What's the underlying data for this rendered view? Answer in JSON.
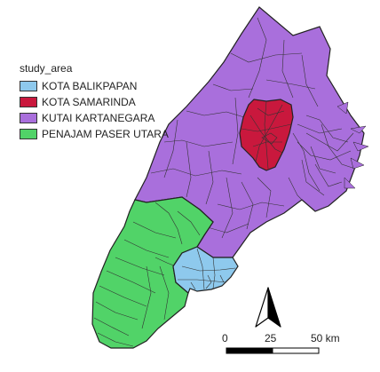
{
  "legend": {
    "title": "study_area",
    "items": [
      {
        "label": "KOTA BALIKPAPAN",
        "color": "#8ec9ed"
      },
      {
        "label": "KOTA SAMARINDA",
        "color": "#c9183d"
      },
      {
        "label": "KUTAI KARTANEGARA",
        "color": "#a96fdc"
      },
      {
        "label": "PENAJAM PASER UTARA",
        "color": "#51d368"
      }
    ]
  },
  "scale_bar": {
    "labels": [
      "0",
      "25",
      "50 km"
    ]
  },
  "north_arrow": {
    "icon": "north-arrow-icon"
  },
  "boundary_color": "#222222"
}
